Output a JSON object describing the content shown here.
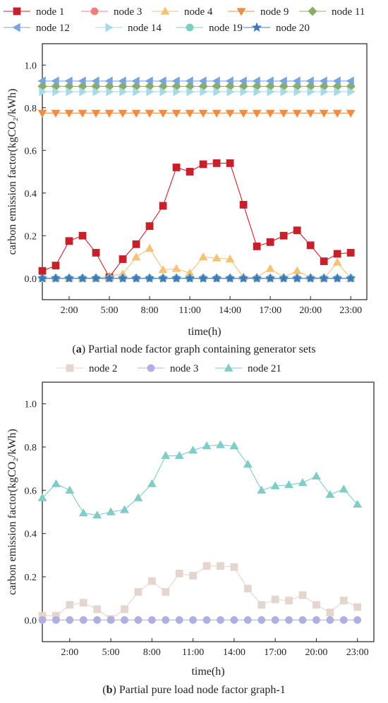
{
  "chart_data": [
    {
      "type": "line",
      "caption_letter": "a",
      "caption_text": "Partial node factor graph containing generator sets",
      "ylabel": "carbon emission factor(kgCO₂/kWh)",
      "xlabel": "time(h)",
      "xlim": [
        0,
        24.2
      ],
      "ylim": [
        -0.1,
        1.1
      ],
      "yticks": [
        "0.0",
        "0.2",
        "0.4",
        "0.6",
        "0.8",
        "1.0"
      ],
      "xticks": [
        "2:00",
        "5:00",
        "8:00",
        "11:00",
        "14:00",
        "17:00",
        "20:00",
        "23:00"
      ],
      "x": [
        0,
        1,
        2,
        3,
        4,
        5,
        6,
        7,
        8,
        9,
        10,
        11,
        12,
        13,
        14,
        15,
        16,
        17,
        18,
        19,
        20,
        21,
        22,
        23
      ],
      "legend_position": "top",
      "series": [
        {
          "name": "node 1",
          "color": "#c8202a",
          "marker": "square",
          "values": [
            0.035,
            0.06,
            0.175,
            0.2,
            0.12,
            0.005,
            0.09,
            0.16,
            0.245,
            0.34,
            0.52,
            0.5,
            0.535,
            0.54,
            0.54,
            0.345,
            0.15,
            0.17,
            0.2,
            0.225,
            0.155,
            0.08,
            0.115,
            0.12
          ]
        },
        {
          "name": "node 3",
          "color": "#f07f7f",
          "marker": "circle",
          "values": [
            0,
            0,
            0,
            0,
            0,
            0,
            0,
            0,
            0,
            0,
            0,
            0,
            0,
            0,
            0,
            0,
            0,
            0,
            0,
            0,
            0,
            0,
            0,
            0
          ]
        },
        {
          "name": "node 4",
          "color": "#f5c27a",
          "marker": "triangle-up",
          "values": [
            0,
            0,
            0,
            0,
            0,
            0.01,
            0.02,
            0.1,
            0.14,
            0.04,
            0.045,
            0.025,
            0.1,
            0.095,
            0.09,
            0.005,
            0.005,
            0.045,
            0.005,
            0.035,
            0.005,
            0,
            0.075,
            0
          ]
        },
        {
          "name": "node 9",
          "color": "#f08d45",
          "marker": "triangle-down",
          "values": [
            0.775,
            0.775,
            0.775,
            0.775,
            0.775,
            0.775,
            0.775,
            0.775,
            0.775,
            0.775,
            0.775,
            0.775,
            0.775,
            0.775,
            0.775,
            0.775,
            0.775,
            0.775,
            0.775,
            0.775,
            0.775,
            0.775,
            0.775,
            0.775
          ]
        },
        {
          "name": "node 11",
          "color": "#8aad65",
          "marker": "diamond",
          "values": [
            0.9,
            0.9,
            0.9,
            0.9,
            0.9,
            0.9,
            0.9,
            0.9,
            0.9,
            0.9,
            0.9,
            0.9,
            0.9,
            0.9,
            0.9,
            0.9,
            0.9,
            0.9,
            0.9,
            0.9,
            0.9,
            0.9,
            0.9,
            0.9
          ]
        },
        {
          "name": "node 12",
          "color": "#78a6dc",
          "marker": "triangle-left",
          "values": [
            0.925,
            0.925,
            0.925,
            0.925,
            0.925,
            0.925,
            0.925,
            0.925,
            0.925,
            0.925,
            0.925,
            0.925,
            0.925,
            0.925,
            0.925,
            0.925,
            0.925,
            0.925,
            0.925,
            0.925,
            0.925,
            0.925,
            0.925,
            0.925
          ]
        },
        {
          "name": "node 14",
          "color": "#a6daea",
          "marker": "triangle-right",
          "values": [
            0.875,
            0.875,
            0.875,
            0.875,
            0.875,
            0.875,
            0.875,
            0.875,
            0.875,
            0.875,
            0.875,
            0.875,
            0.875,
            0.875,
            0.875,
            0.875,
            0.875,
            0.875,
            0.875,
            0.875,
            0.875,
            0.875,
            0.875,
            0.875
          ]
        },
        {
          "name": "node 19",
          "color": "#7fcdc2",
          "marker": "circle",
          "values": [
            0,
            0,
            0,
            0,
            0,
            0,
            0,
            0,
            0,
            0,
            0,
            0,
            0,
            0,
            0,
            0,
            0,
            0,
            0,
            0,
            0,
            0,
            0,
            0
          ]
        },
        {
          "name": "node 20",
          "color": "#3f78b8",
          "marker": "star",
          "values": [
            0,
            0,
            0,
            0,
            0,
            0,
            0,
            0,
            0,
            0,
            0,
            0,
            0,
            0,
            0,
            0,
            0,
            0,
            0,
            0,
            0,
            0,
            0,
            0
          ]
        }
      ]
    },
    {
      "type": "line",
      "caption_letter": "b",
      "caption_text": "Partial pure load node factor graph-1",
      "ylabel": "carbon emission factor(kgCO₂/kWh)",
      "xlabel": "time(h)",
      "xlim": [
        0,
        24.2
      ],
      "ylim": [
        -0.1,
        1.1
      ],
      "yticks": [
        "0.0",
        "0.2",
        "0.4",
        "0.6",
        "0.8",
        "1.0"
      ],
      "xticks": [
        "2:00",
        "5:00",
        "8:00",
        "11:00",
        "14:00",
        "17:00",
        "20:00",
        "23:00"
      ],
      "x": [
        0,
        1,
        2,
        3,
        4,
        5,
        6,
        7,
        8,
        9,
        10,
        11,
        12,
        13,
        14,
        15,
        16,
        17,
        18,
        19,
        20,
        21,
        22,
        23
      ],
      "legend_position": "top",
      "series": [
        {
          "name": "node 2",
          "color": "#e4d6cf",
          "marker": "square",
          "values": [
            0.02,
            0.02,
            0.07,
            0.08,
            0.05,
            0.005,
            0.05,
            0.13,
            0.18,
            0.13,
            0.215,
            0.205,
            0.25,
            0.25,
            0.245,
            0.145,
            0.07,
            0.095,
            0.09,
            0.115,
            0.07,
            0.035,
            0.09,
            0.06
          ]
        },
        {
          "name": "node 3",
          "color": "#b0b0e0",
          "marker": "circle",
          "values": [
            0,
            0,
            0,
            0,
            0,
            0,
            0,
            0,
            0,
            0,
            0,
            0,
            0,
            0,
            0,
            0,
            0,
            0,
            0,
            0,
            0,
            0,
            0,
            0
          ]
        },
        {
          "name": "node 21",
          "color": "#7fcdc6",
          "marker": "triangle-up",
          "values": [
            0.565,
            0.63,
            0.6,
            0.495,
            0.485,
            0.5,
            0.51,
            0.565,
            0.63,
            0.76,
            0.76,
            0.785,
            0.805,
            0.81,
            0.805,
            0.72,
            0.6,
            0.62,
            0.625,
            0.635,
            0.665,
            0.58,
            0.605,
            0.535
          ]
        }
      ]
    }
  ]
}
